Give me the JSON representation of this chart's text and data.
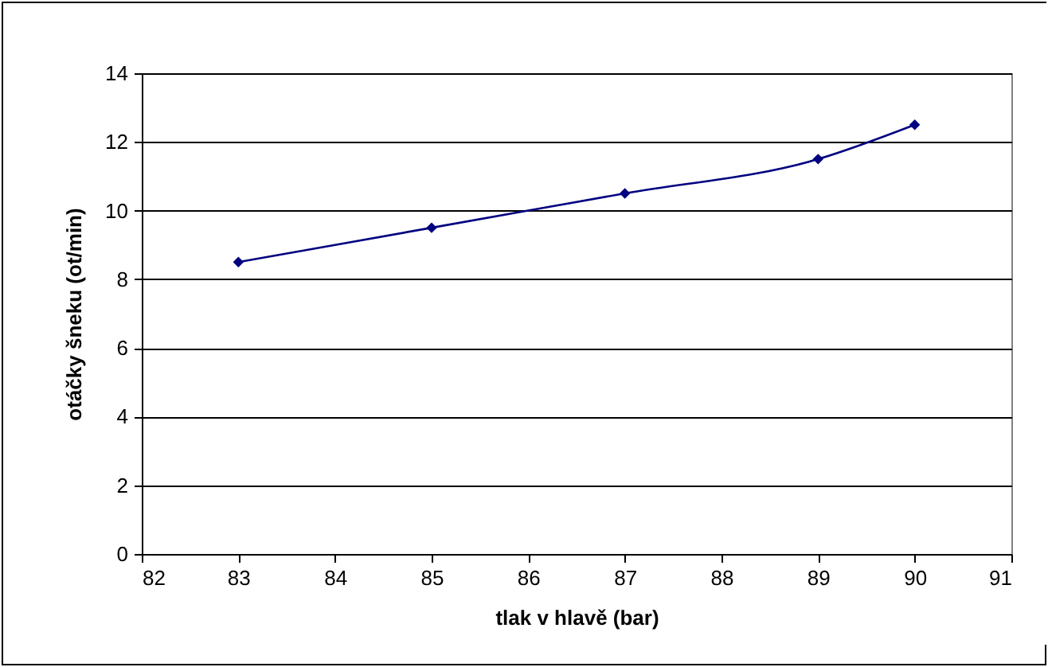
{
  "chart_data": {
    "type": "line",
    "xlabel": "tlak v hlavě (bar)",
    "ylabel": "otáčky šneku (ot/min)",
    "x": [
      83,
      85,
      87,
      89,
      90
    ],
    "series": [
      {
        "color": "#000080",
        "values": [
          8.5,
          9.5,
          10.5,
          11.5,
          12.5
        ]
      }
    ],
    "xlim": [
      82,
      91
    ],
    "xticks": [
      82,
      83,
      84,
      85,
      86,
      87,
      88,
      89,
      90,
      91
    ],
    "ylim": [
      0,
      14
    ],
    "yticks": [
      0,
      2,
      4,
      6,
      8,
      10,
      12,
      14
    ],
    "grid": "y",
    "marker": "diamond",
    "line_style": "solid"
  }
}
